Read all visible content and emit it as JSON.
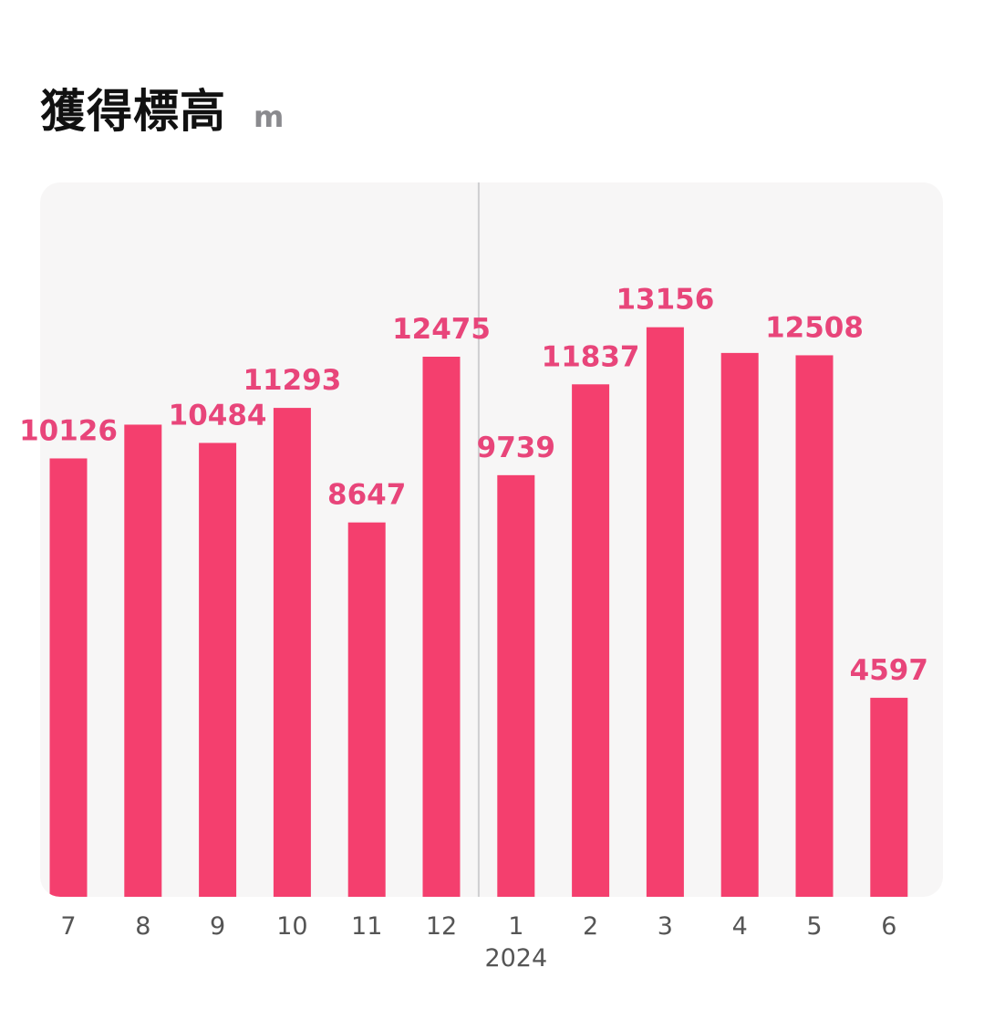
{
  "header": {
    "title": "獲得標高",
    "unit": "m"
  },
  "colors": {
    "bar": "#f43f6e",
    "label": "#e8457a",
    "plot_bg": "#f7f6f6",
    "divider": "#cfcfd1"
  },
  "chart_data": {
    "type": "bar",
    "title": "獲得標高",
    "unit": "m",
    "categories": [
      "7",
      "8",
      "9",
      "10",
      "11",
      "12",
      "1",
      "2",
      "3",
      "4",
      "5",
      "6"
    ],
    "values": [
      10126,
      10906,
      10484,
      11293,
      8647,
      12475,
      9739,
      11837,
      13156,
      12562,
      12508,
      4597
    ],
    "value_labels": [
      "10126",
      "",
      "10484",
      "11293",
      "8647",
      "12475",
      "9739",
      "11837",
      "13156",
      "",
      "12508",
      "4597"
    ],
    "year_marker": {
      "before_category": "1",
      "label": "2024"
    },
    "ylim": [
      0,
      16500
    ],
    "grid": false,
    "legend": "none"
  }
}
